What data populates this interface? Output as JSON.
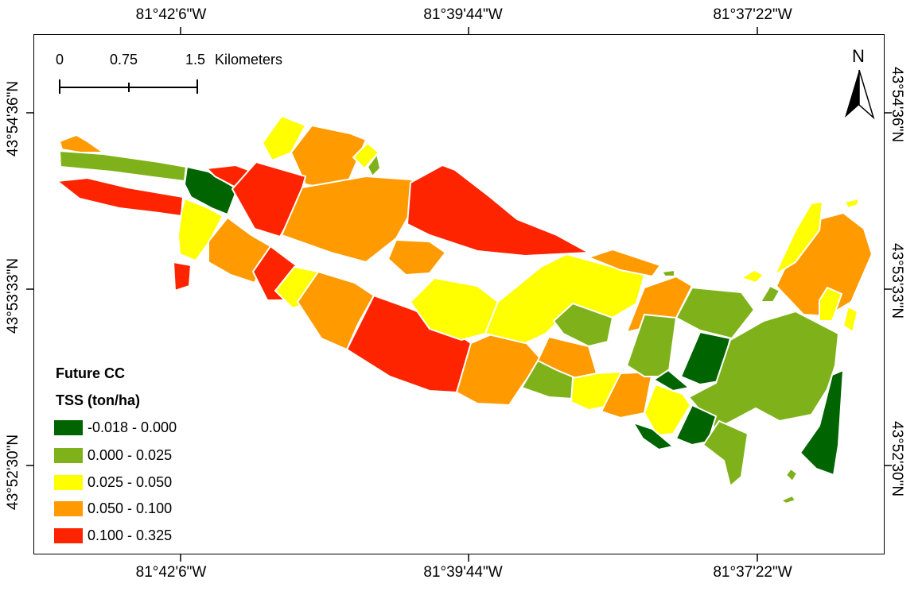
{
  "graticule": {
    "top": [
      "81°42'6\"W",
      "81°39'44\"W",
      "81°37'22\"W"
    ],
    "bottom": [
      "81°42'6\"W",
      "81°39'44\"W",
      "81°37'22\"W"
    ],
    "left": [
      "43°54'36\"N",
      "43°53'33\"N",
      "43°52'30\"N"
    ],
    "right": [
      "43°54'36\"N",
      "43°53'33\"N",
      "43°52'30\"N"
    ]
  },
  "scale_bar": {
    "labels": [
      "0",
      "0.75",
      "1.5"
    ],
    "unit": "Kilometers"
  },
  "north_arrow": {
    "label": "N"
  },
  "legend": {
    "title_line1": "Future CC",
    "title_line2": "TSS (ton/ha)",
    "classes": [
      {
        "label": "-0.018 - 0.000",
        "color": "#006400"
      },
      {
        "label": "0.000 - 0.025",
        "color": "#7fb21a"
      },
      {
        "label": "0.025 - 0.050",
        "color": "#ffff00"
      },
      {
        "label": "0.050 - 0.100",
        "color": "#ff9a00"
      },
      {
        "label": "0.100 - 0.325",
        "color": "#ff2400"
      }
    ]
  }
}
